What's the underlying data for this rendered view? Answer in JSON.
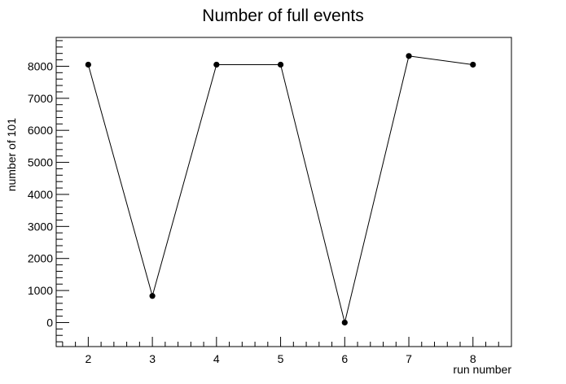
{
  "chart_data": {
    "type": "line",
    "title": "Number of full events",
    "xlabel": "run number",
    "ylabel": "number of 101",
    "x": [
      2,
      3,
      4,
      5,
      6,
      7,
      8
    ],
    "series": [
      {
        "values": [
          8050,
          830,
          8050,
          8050,
          0,
          8320,
          8050
        ]
      }
    ],
    "xlim": [
      1.5,
      8.6
    ],
    "ylim": [
      -750,
      8900
    ],
    "xticks": [
      2,
      3,
      4,
      5,
      6,
      7,
      8
    ],
    "yticks": [
      0,
      1000,
      2000,
      3000,
      4000,
      5000,
      6000,
      7000,
      8000
    ],
    "grid": false,
    "legend": "none",
    "colors": {
      "line": "#000000",
      "marker": "#000000",
      "frame": "#000000"
    }
  }
}
